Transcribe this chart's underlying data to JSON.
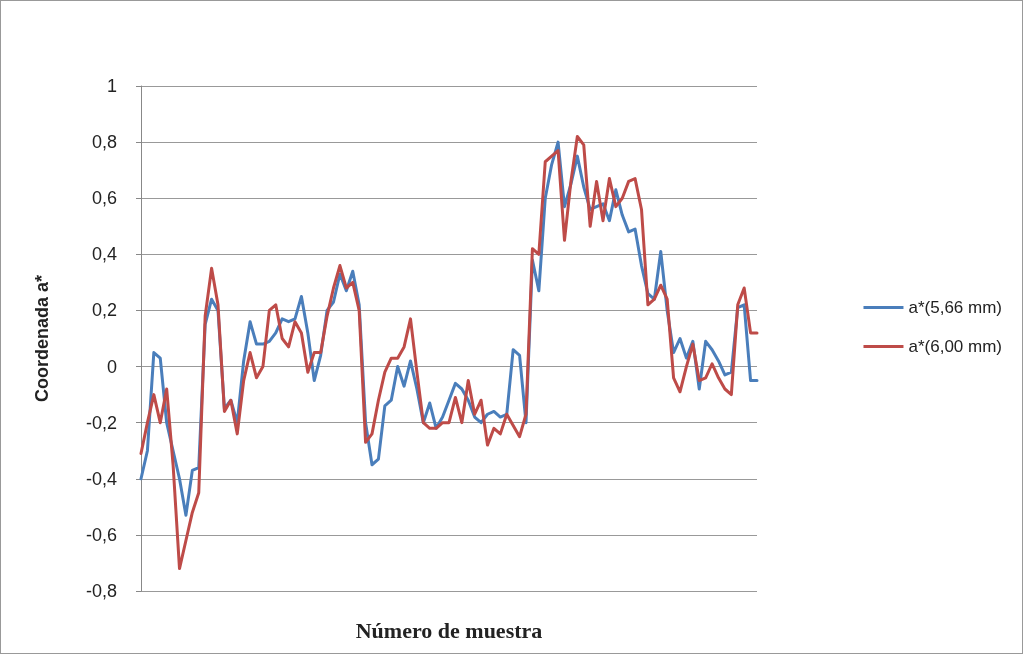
{
  "chart_data": {
    "type": "line",
    "xlabel": "Número de muestra",
    "ylabel": "Coordenada a*",
    "categories": [
      null,
      null,
      null,
      null,
      null,
      null,
      null,
      null,
      null,
      null,
      null,
      null,
      null,
      null,
      null,
      null,
      null,
      null,
      null,
      null,
      null,
      null,
      null,
      null,
      null,
      null,
      null,
      null,
      null,
      null,
      null,
      null,
      null,
      null,
      null,
      null,
      null,
      null,
      null,
      null,
      null,
      null,
      null,
      null,
      null,
      null,
      null,
      null,
      null,
      null,
      null,
      null,
      null,
      null,
      null,
      null,
      null,
      null,
      null,
      null,
      null,
      null,
      null,
      null,
      null,
      null,
      null,
      null,
      null,
      null,
      null,
      null,
      null,
      null,
      null,
      null,
      null,
      null,
      null,
      null,
      null,
      null,
      null,
      null,
      null,
      null,
      null,
      null,
      null,
      null,
      null,
      null,
      null,
      null,
      null,
      null,
      null
    ],
    "series": [
      {
        "name": "a*(5,66 mm)",
        "color": "#4a7ebb",
        "values": [
          -0.4,
          -0.3,
          0.05,
          0.03,
          -0.2,
          -0.3,
          -0.4,
          -0.53,
          -0.37,
          -0.36,
          0.15,
          0.24,
          0.2,
          -0.15,
          -0.12,
          -0.2,
          0.02,
          0.16,
          0.08,
          0.08,
          0.09,
          0.12,
          0.17,
          0.16,
          0.17,
          0.25,
          0.12,
          -0.05,
          0.04,
          0.2,
          0.23,
          0.33,
          0.27,
          0.34,
          0.22,
          -0.2,
          -0.35,
          -0.33,
          -0.14,
          -0.12,
          0.0,
          -0.07,
          0.02,
          -0.08,
          -0.2,
          -0.13,
          -0.22,
          -0.18,
          -0.12,
          -0.06,
          -0.08,
          -0.12,
          -0.18,
          -0.2,
          -0.17,
          -0.16,
          -0.18,
          -0.17,
          0.06,
          0.04,
          -0.2,
          0.38,
          0.27,
          0.6,
          0.72,
          0.8,
          0.57,
          0.65,
          0.75,
          0.64,
          0.56,
          0.57,
          0.58,
          0.52,
          0.63,
          0.54,
          0.48,
          0.49,
          0.36,
          0.26,
          0.24,
          0.41,
          0.2,
          0.05,
          0.1,
          0.03,
          0.09,
          -0.08,
          0.09,
          0.06,
          0.02,
          -0.03,
          -0.02,
          0.21,
          0.22,
          -0.05,
          -0.05
        ]
      },
      {
        "name": "a*(6,00 mm)",
        "color": "#be4b48",
        "values": [
          -0.31,
          -0.2,
          -0.1,
          -0.2,
          -0.08,
          -0.35,
          -0.72,
          -0.62,
          -0.52,
          -0.45,
          0.18,
          0.35,
          0.22,
          -0.16,
          -0.12,
          -0.24,
          -0.05,
          0.05,
          -0.04,
          0.0,
          0.2,
          0.22,
          0.1,
          0.07,
          0.16,
          0.12,
          -0.02,
          0.05,
          0.05,
          0.18,
          0.28,
          0.36,
          0.28,
          0.3,
          0.2,
          -0.27,
          -0.24,
          -0.12,
          -0.02,
          0.03,
          0.03,
          0.07,
          0.17,
          -0.02,
          -0.2,
          -0.22,
          -0.22,
          -0.2,
          -0.2,
          -0.11,
          -0.2,
          -0.05,
          -0.17,
          -0.12,
          -0.28,
          -0.22,
          -0.24,
          -0.17,
          -0.21,
          -0.25,
          -0.17,
          0.42,
          0.4,
          0.73,
          0.75,
          0.77,
          0.45,
          0.66,
          0.82,
          0.79,
          0.5,
          0.66,
          0.52,
          0.67,
          0.57,
          0.6,
          0.66,
          0.67,
          0.56,
          0.22,
          0.24,
          0.29,
          0.24,
          -0.04,
          -0.09,
          0.0,
          0.08,
          -0.05,
          -0.04,
          0.01,
          -0.04,
          -0.08,
          -0.1,
          0.22,
          0.28,
          0.12,
          0.12
        ]
      }
    ],
    "ylim": [
      -0.8,
      1
    ],
    "yticks": [
      {
        "value": -0.8,
        "label": "-0,8"
      },
      {
        "value": -0.6,
        "label": "-0,6"
      },
      {
        "value": -0.4,
        "label": "-0,4"
      },
      {
        "value": -0.2,
        "label": "-0,2"
      },
      0,
      {
        "value": 0.2,
        "label": "0,2"
      },
      {
        "value": 0.4,
        "label": "0,4"
      },
      {
        "value": 0.6,
        "label": "0,6"
      },
      {
        "value": 0.8,
        "label": "0,8"
      },
      1
    ],
    "grid": "y",
    "legend": "right",
    "marker": "none",
    "line_style": "solid"
  }
}
